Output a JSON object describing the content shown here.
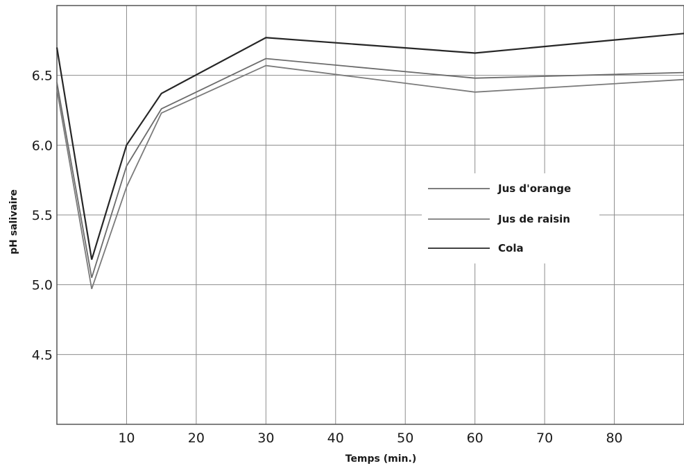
{
  "chart_data": {
    "type": "line",
    "title": "",
    "xlabel": "Temps (min.)",
    "ylabel": "pH salivaire",
    "xlim": [
      0,
      90
    ],
    "ylim": [
      4.0,
      7.0
    ],
    "x_ticks": [
      10,
      20,
      30,
      40,
      50,
      60,
      70,
      80
    ],
    "y_ticks": [
      4.5,
      5.0,
      5.5,
      6.0,
      6.5
    ],
    "x_tick_labels": [
      "10",
      "20",
      "30",
      "40",
      "50",
      "60",
      "70",
      "80"
    ],
    "y_tick_labels": [
      "4.5",
      "5.0",
      "5.5",
      "6.0",
      "6.5"
    ],
    "grid": true,
    "legend_position": "right-center",
    "series": [
      {
        "name": "Jus d'orange",
        "color": "#6b6b6b",
        "x": [
          0,
          5,
          10,
          15,
          30,
          60,
          90
        ],
        "y": [
          6.45,
          5.05,
          5.85,
          6.26,
          6.62,
          6.48,
          6.52
        ]
      },
      {
        "name": "Jus de raisin",
        "color": "#7a7a7a",
        "x": [
          0,
          5,
          10,
          15,
          30,
          60,
          90
        ],
        "y": [
          6.4,
          4.97,
          5.7,
          6.23,
          6.57,
          6.38,
          6.47
        ]
      },
      {
        "name": "Cola",
        "color": "#262626",
        "x": [
          0,
          5,
          10,
          15,
          30,
          60,
          90
        ],
        "y": [
          6.7,
          5.18,
          6.0,
          6.37,
          6.77,
          6.66,
          6.8
        ]
      }
    ]
  }
}
